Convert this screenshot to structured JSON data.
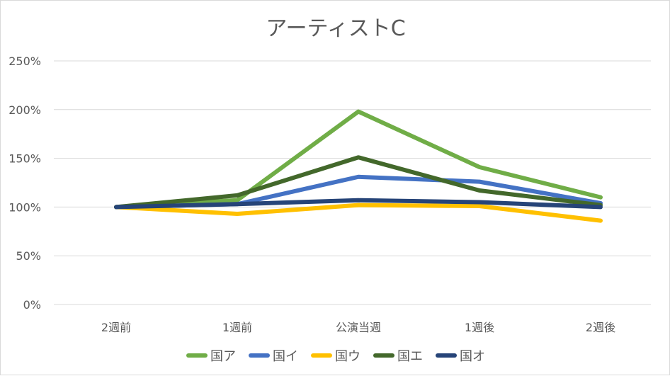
{
  "chart_data": {
    "type": "line",
    "title": "アーティストC",
    "categories": [
      "2週前",
      "1週前",
      "公演当週",
      "1週後",
      "2週後"
    ],
    "ylim": [
      0,
      2.5
    ],
    "yticks": [
      0,
      0.5,
      1.0,
      1.5,
      2.0,
      2.5
    ],
    "ytick_labels": [
      "0%",
      "50%",
      "100%",
      "150%",
      "200%",
      "250%"
    ],
    "grid": true,
    "legend_position": "bottom",
    "series": [
      {
        "name": "国ア",
        "color": "#70ad47",
        "values": [
          1.0,
          1.07,
          1.98,
          1.41,
          1.1
        ]
      },
      {
        "name": "国イ",
        "color": "#4472c4",
        "values": [
          1.0,
          1.03,
          1.31,
          1.26,
          1.04
        ]
      },
      {
        "name": "国ウ",
        "color": "#ffc000",
        "values": [
          1.0,
          0.93,
          1.02,
          1.01,
          0.86
        ]
      },
      {
        "name": "国エ",
        "color": "#43682b",
        "values": [
          1.0,
          1.12,
          1.51,
          1.17,
          1.02
        ]
      },
      {
        "name": "国オ",
        "color": "#264478",
        "values": [
          1.0,
          1.03,
          1.07,
          1.05,
          1.0
        ]
      }
    ]
  }
}
